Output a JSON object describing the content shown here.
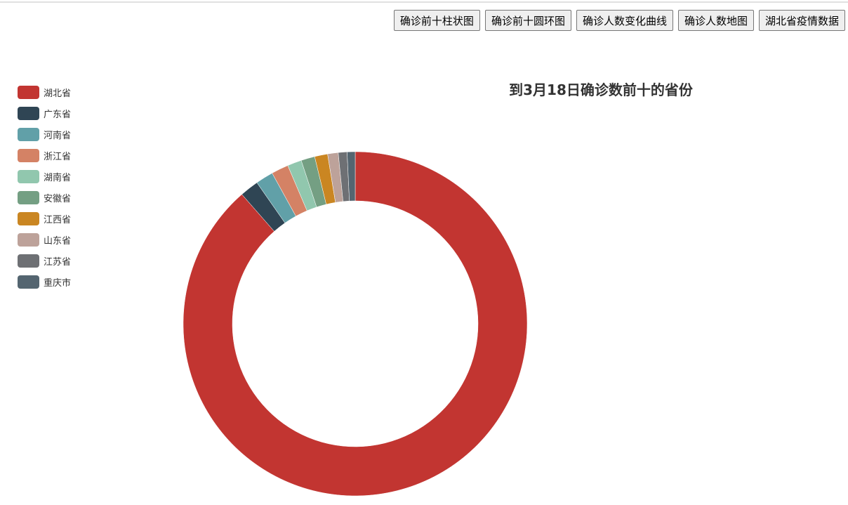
{
  "nav": {
    "buttons": [
      "确诊前十柱状图",
      "确诊前十圆环图",
      "确诊人数变化曲线",
      "确诊人数地图",
      "湖北省疫情数据"
    ]
  },
  "chart_data": {
    "type": "pie",
    "title": "到3月18日确诊数前十的省份",
    "legend_position": "top-left",
    "donut": true,
    "categories": [
      "湖北省",
      "广东省",
      "河南省",
      "浙江省",
      "湖南省",
      "安徽省",
      "江西省",
      "山东省",
      "江苏省",
      "重庆市"
    ],
    "values": [
      67800,
      1353,
      1273,
      1232,
      1018,
      990,
      935,
      761,
      631,
      576
    ],
    "colors": [
      "#c23531",
      "#2f4554",
      "#61a0a8",
      "#d48265",
      "#91c7ae",
      "#749f83",
      "#ca8622",
      "#bda29a",
      "#6e7074",
      "#546570"
    ]
  }
}
